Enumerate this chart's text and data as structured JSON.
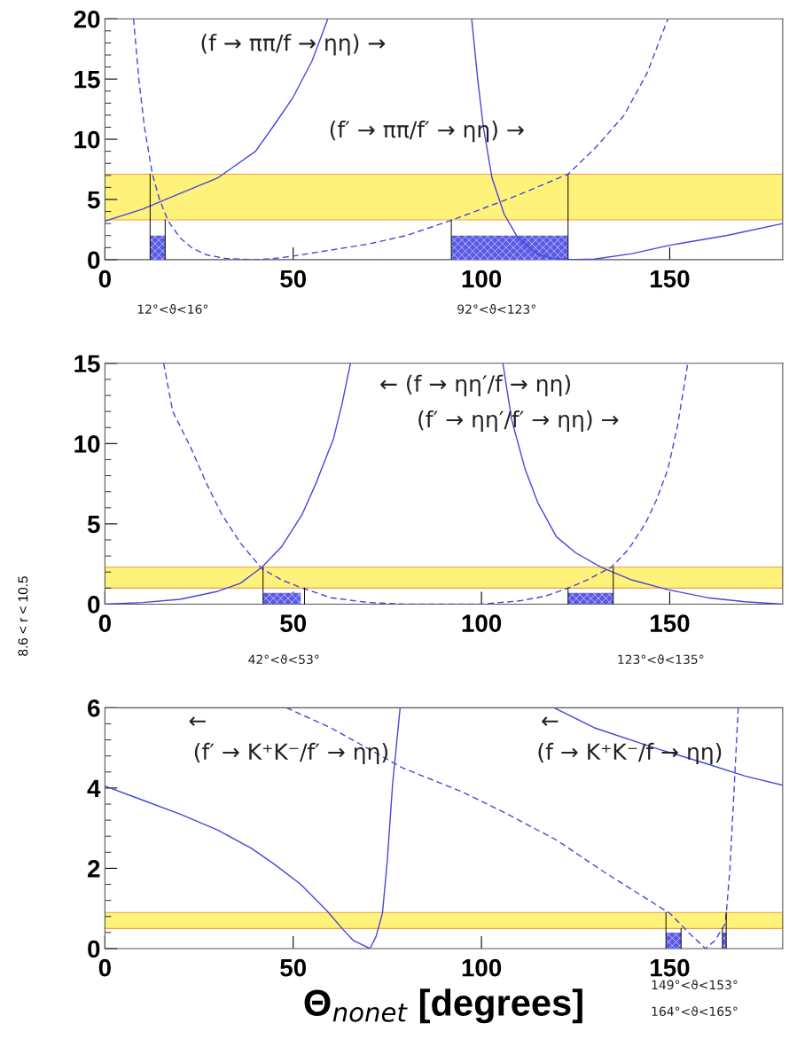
{
  "chart_data": [
    {
      "type": "line",
      "xlim": [
        0,
        180
      ],
      "ylim": [
        0,
        20
      ],
      "xticks": [
        0,
        50,
        100,
        150
      ],
      "yticks": [
        0,
        5,
        10,
        15,
        20
      ],
      "grid": false,
      "legend": false,
      "bands": [
        {
          "axis": "y",
          "from": 3.3,
          "to": 7.1,
          "color": "#fff27a",
          "label": null
        }
      ],
      "series": [
        {
          "type": "line",
          "color": "#4646dc",
          "line_style": "solid",
          "x": [
            0,
            10,
            20,
            30,
            40,
            45,
            50,
            55,
            59.2
          ],
          "values": [
            3.2,
            4.2,
            5.5,
            6.8,
            9.0,
            11.2,
            13.5,
            16.5,
            20
          ]
        },
        {
          "type": "line",
          "color": "#4646dc",
          "line_style": "solid",
          "x": [
            97.4,
            99,
            100.5,
            102.8,
            106,
            109.5,
            114,
            118,
            123,
            130,
            140,
            150,
            165,
            180
          ],
          "values": [
            20,
            15,
            11,
            6.8,
            3.8,
            1.9,
            0.6,
            0.15,
            0,
            0.05,
            0.5,
            1.2,
            2.0,
            3.0
          ]
        },
        {
          "type": "line",
          "color": "#4646dc",
          "line_style": "dashed",
          "x": [
            7.6,
            9,
            10.5,
            12.6,
            14.5,
            16.8,
            20,
            23,
            27,
            32,
            40,
            45,
            50,
            60,
            70,
            80,
            91.4,
            100,
            110,
            123,
            130,
            137.9,
            144,
            149.5
          ],
          "values": [
            20,
            15,
            11,
            7.1,
            5,
            3.2,
            1.8,
            1.0,
            0.4,
            0.1,
            0,
            0.1,
            0.3,
            0.8,
            1.3,
            2.0,
            3.2,
            4.2,
            5.4,
            7.1,
            9.2,
            12,
            15.5,
            20
          ]
        },
        {
          "type": "area",
          "color": "#5a5ae6",
          "x": [
            12,
            16
          ],
          "values": [
            2,
            2
          ]
        },
        {
          "type": "area",
          "color": "#5a5ae6",
          "x": [
            92,
            123
          ],
          "values": [
            2,
            2
          ]
        },
        {
          "type": "line",
          "color": "#000000",
          "line_style": "solid",
          "x": [
            12,
            12
          ],
          "values": [
            0,
            7.1
          ]
        },
        {
          "type": "line",
          "color": "#000000",
          "line_style": "solid",
          "x": [
            16,
            16
          ],
          "values": [
            0,
            3.3
          ]
        },
        {
          "type": "line",
          "color": "#000000",
          "line_style": "solid",
          "x": [
            92,
            92
          ],
          "values": [
            0,
            3.3
          ]
        },
        {
          "type": "line",
          "color": "#000000",
          "line_style": "solid",
          "x": [
            123,
            123
          ],
          "values": [
            0,
            7.1
          ]
        }
      ],
      "annotations": [
        "(f → ππ/f → ηη) →",
        "(f′ → ππ/f′ → ηη) →",
        "12°<ϑ<16°",
        "92°<ϑ<123°"
      ]
    },
    {
      "type": "line",
      "xlim": [
        0,
        180
      ],
      "ylim": [
        0,
        15
      ],
      "xticks": [
        0,
        50,
        100,
        150
      ],
      "yticks": [
        0,
        5,
        10,
        15
      ],
      "grid": false,
      "legend": false,
      "ylabel": "8.6 < r < 10.5",
      "bands": [
        {
          "axis": "y",
          "from": 1.0,
          "to": 2.3,
          "color": "#fff27a",
          "label": null
        }
      ],
      "series": [
        {
          "type": "line",
          "color": "#4646dc",
          "line_style": "solid",
          "x": [
            0,
            10,
            20,
            30,
            36,
            41.7,
            47,
            52.4,
            56,
            60.7,
            63,
            65.2
          ],
          "values": [
            0,
            0.1,
            0.3,
            0.8,
            1.3,
            2.3,
            3.6,
            5.6,
            7.5,
            10.3,
            12.5,
            15
          ]
        },
        {
          "type": "line",
          "color": "#4646dc",
          "line_style": "solid",
          "x": [
            105.7,
            108,
            111.6,
            115,
            119.9,
            125,
            131.8,
            140,
            149.5,
            160,
            170,
            180
          ],
          "values": [
            15,
            11.5,
            8.4,
            6.3,
            4.2,
            3.2,
            2.3,
            1.5,
            0.9,
            0.4,
            0.15,
            0
          ]
        },
        {
          "type": "line",
          "color": "#4646dc",
          "line_style": "dashed",
          "x": [
            15.6,
            18,
            22.7,
            27,
            31,
            36,
            41.7,
            47,
            52.4,
            60,
            70,
            80,
            100,
            110,
            117,
            123,
            128,
            134.5,
            139,
            143.5,
            146.5,
            149.5,
            152,
            154.8
          ],
          "values": [
            15,
            12,
            9.8,
            7.5,
            5.6,
            3.8,
            2.2,
            1.5,
            1.0,
            0.4,
            0.1,
            0,
            0,
            0.2,
            0.5,
            1.0,
            1.5,
            2.3,
            3.4,
            5,
            6.5,
            8.4,
            11,
            15
          ]
        },
        {
          "type": "area",
          "color": "#5a5ae6",
          "x": [
            42,
            52
          ],
          "values": [
            0.7,
            0.7
          ]
        },
        {
          "type": "area",
          "color": "#5a5ae6",
          "x": [
            123,
            135
          ],
          "values": [
            0.7,
            0.7
          ]
        },
        {
          "type": "line",
          "color": "#000000",
          "line_style": "solid",
          "x": [
            42,
            42
          ],
          "values": [
            0,
            2.3
          ]
        },
        {
          "type": "line",
          "color": "#000000",
          "line_style": "solid",
          "x": [
            53,
            53
          ],
          "values": [
            0,
            1.0
          ]
        },
        {
          "type": "line",
          "color": "#000000",
          "line_style": "solid",
          "x": [
            123,
            123
          ],
          "values": [
            0,
            1.0
          ]
        },
        {
          "type": "line",
          "color": "#000000",
          "line_style": "solid",
          "x": [
            135,
            135
          ],
          "values": [
            0,
            2.3
          ]
        }
      ],
      "annotations": [
        "← (f → ηη′/f → ηη)",
        "(f′ → ηη′/f′ → ηη) →",
        "42°<ϑ<53°",
        "123°<ϑ<135°"
      ]
    },
    {
      "type": "line",
      "xlim": [
        0,
        180
      ],
      "ylim": [
        0,
        6
      ],
      "xticks": [
        0,
        50,
        100,
        150
      ],
      "yticks": [
        0,
        2,
        4,
        6
      ],
      "grid": false,
      "legend": false,
      "xlabel": "Θ$_{nonet}$ [degrees]",
      "bands": [
        {
          "axis": "y",
          "from": 0.5,
          "to": 0.9,
          "color": "#fff27a",
          "label": null
        }
      ],
      "series": [
        {
          "type": "line",
          "color": "#4646dc",
          "line_style": "solid",
          "x": [
            0,
            10,
            20,
            30,
            38.9,
            45,
            52,
            59,
            63,
            66,
            70.4,
            72,
            73.7,
            75,
            76.4,
            78.4
          ],
          "values": [
            4.05,
            3.7,
            3.35,
            2.95,
            2.5,
            2.1,
            1.6,
            0.94,
            0.5,
            0.2,
            0,
            0.3,
            0.88,
            2.2,
            4.1,
            6
          ]
        },
        {
          "type": "line",
          "color": "#4646dc",
          "line_style": "dashed",
          "x": [
            48.2,
            60,
            79.1,
            95,
            105.9,
            120,
            132.7,
            142,
            150,
            155,
            159.5,
            162,
            164.8,
            166,
            167,
            168.2
          ],
          "values": [
            6,
            5.5,
            4.5,
            3.9,
            3.4,
            2.7,
            1.9,
            1.35,
            0.88,
            0.4,
            0,
            0.2,
            0.63,
            2.0,
            3.8,
            6
          ]
        },
        {
          "type": "line",
          "color": "#4646dc",
          "line_style": "solid",
          "x": [
            119.3,
            130,
            146,
            160,
            170,
            180
          ],
          "values": [
            6,
            5.5,
            5.0,
            4.6,
            4.3,
            4.07
          ]
        },
        {
          "type": "area",
          "color": "#5a5ae6",
          "x": [
            149,
            153
          ],
          "values": [
            0.4,
            0.4
          ]
        },
        {
          "type": "area",
          "color": "#5a5ae6",
          "x": [
            164,
            165
          ],
          "values": [
            0.4,
            0.4
          ]
        },
        {
          "type": "line",
          "color": "#000000",
          "line_style": "solid",
          "x": [
            149,
            149
          ],
          "values": [
            0,
            0.9
          ]
        },
        {
          "type": "line",
          "color": "#000000",
          "line_style": "solid",
          "x": [
            153,
            153
          ],
          "values": [
            0,
            0.5
          ]
        },
        {
          "type": "line",
          "color": "#000000",
          "line_style": "solid",
          "x": [
            164,
            164
          ],
          "values": [
            0,
            0.5
          ]
        },
        {
          "type": "line",
          "color": "#000000",
          "line_style": "solid",
          "x": [
            165,
            165
          ],
          "values": [
            0,
            0.9
          ]
        }
      ],
      "annotations": [
        "←",
        "(f′ → K⁺K⁻/f′ → ηη)",
        "←",
        "(f → K⁺K⁻/f → ηη)",
        "149°<ϑ<153°",
        "164°<ϑ<165°"
      ]
    }
  ]
}
